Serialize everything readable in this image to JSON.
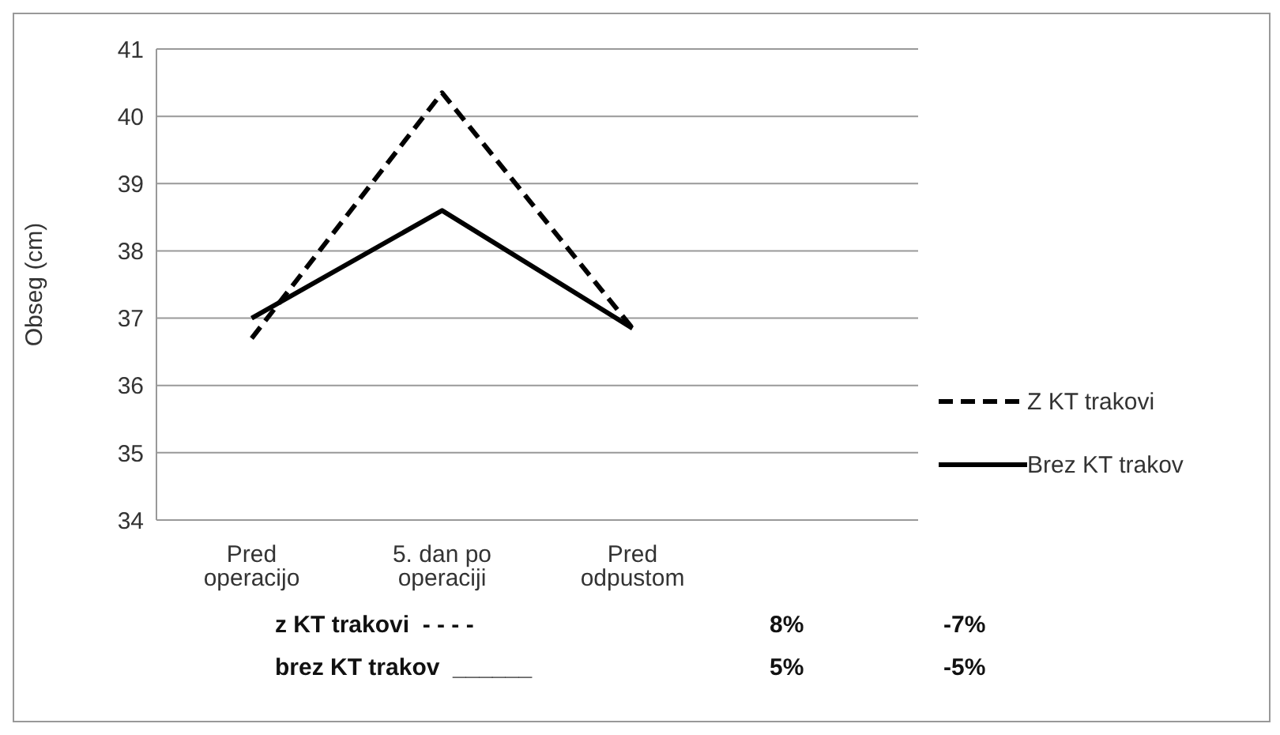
{
  "chart_data": {
    "type": "line",
    "ylabel": "Obseg (cm)",
    "categories": [
      "Pred operacijo",
      "5. dan po operaciji",
      "Pred odpustom",
      null
    ],
    "series": [
      {
        "name": "Z KT trakovi",
        "color": "#000000",
        "line_style": "dashed",
        "values": [
          36.7,
          40.35,
          36.85,
          null
        ]
      },
      {
        "name": "Brez KT trakov",
        "color": "#000000",
        "line_style": "solid",
        "values": [
          37.0,
          38.6,
          36.85,
          null
        ]
      }
    ],
    "ylim": [
      34,
      41
    ],
    "yticks": [
      34,
      35,
      36,
      37,
      38,
      39,
      40,
      41
    ],
    "grid": "y",
    "legend": "right",
    "marker": "none",
    "annotations": [
      "z KT trakovi  - - - -",
      "8%",
      "-7%",
      "brez KT trakov  ______",
      "5%",
      "-5%"
    ]
  }
}
